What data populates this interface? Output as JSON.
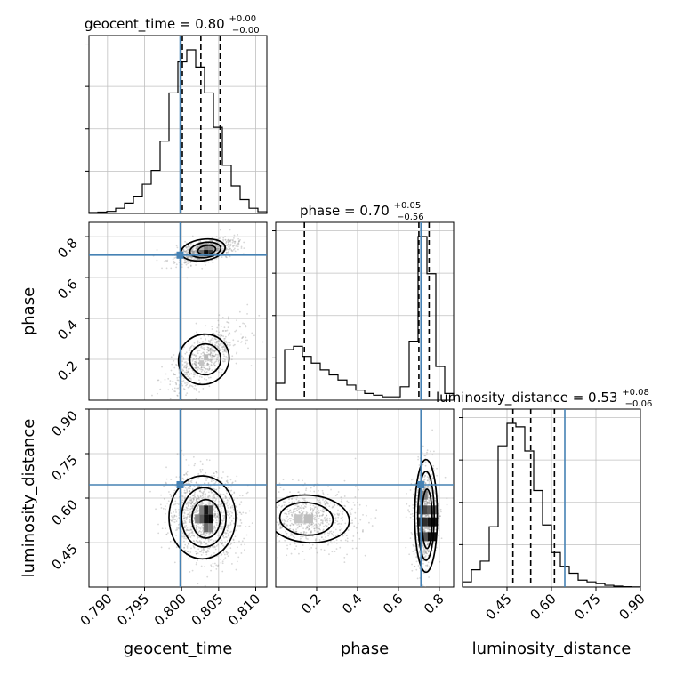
{
  "titles": {
    "geocent_time": {
      "main": "geocent_time = 0.80",
      "sup": "+0.00",
      "sub": "−0.00"
    },
    "phase": {
      "main": "phase = 0.70",
      "sup": "+0.05",
      "sub": "−0.56"
    },
    "luminosity_distance": {
      "main": "luminosity_distance = 0.53",
      "sup": "+0.08",
      "sub": "−0.06"
    }
  },
  "axis_labels": {
    "x": [
      "geocent_time",
      "phase",
      "luminosity_distance"
    ],
    "y": [
      "phase",
      "luminosity_distance"
    ]
  },
  "colors": {
    "truth": "#4682b4",
    "hist": "#000000",
    "grid": "#c0c0c0",
    "scatter": "#8c8c8c"
  },
  "chart_data": {
    "type": "corner",
    "parameters": [
      "geocent_time",
      "phase",
      "luminosity_distance"
    ],
    "ranges": {
      "geocent_time": [
        0.7875,
        0.8115
      ],
      "phase": [
        0.0,
        0.87
      ],
      "luminosity_distance": [
        0.3,
        0.9
      ]
    },
    "ticks": {
      "geocent_time": {
        "values": [
          0.79,
          0.795,
          0.8,
          0.805,
          0.81
        ],
        "labels": [
          "0.790",
          "0.795",
          "0.800",
          "0.805",
          "0.810"
        ]
      },
      "phase": {
        "values": [
          0.2,
          0.4,
          0.6,
          0.8
        ],
        "labels": [
          "0.2",
          "0.4",
          "0.6",
          "0.8"
        ]
      },
      "luminosity_distance": {
        "values": [
          0.45,
          0.6,
          0.75,
          0.9
        ],
        "labels": [
          "0.45",
          "0.60",
          "0.75",
          "0.90"
        ]
      }
    },
    "truths": {
      "geocent_time": 0.7998,
      "phase": 0.71,
      "luminosity_distance": 0.645
    },
    "quantiles": {
      "geocent_time": [
        0.8001,
        0.8026,
        0.8052
      ],
      "phase": [
        0.14,
        0.7,
        0.75
      ],
      "luminosity_distance": [
        0.47,
        0.53,
        0.61
      ]
    },
    "histograms": {
      "geocent_time": {
        "edges_start": 0.7875,
        "bin_width": 0.0012,
        "counts": [
          0.005,
          0.008,
          0.012,
          0.03,
          0.06,
          0.1,
          0.17,
          0.25,
          0.42,
          0.7,
          0.88,
          0.95,
          0.85,
          0.7,
          0.5,
          0.28,
          0.16,
          0.08,
          0.03,
          0.01
        ]
      },
      "phase": {
        "edges_start": 0.0,
        "bin_width": 0.0435,
        "counts": [
          0.1,
          0.3,
          0.32,
          0.26,
          0.22,
          0.18,
          0.15,
          0.12,
          0.09,
          0.06,
          0.04,
          0.03,
          0.02,
          0.02,
          0.08,
          0.35,
          0.97,
          0.75,
          0.2,
          0.04
        ]
      },
      "luminosity_distance": {
        "edges_start": 0.3,
        "bin_width": 0.03,
        "counts": [
          0.03,
          0.1,
          0.15,
          0.35,
          0.82,
          0.95,
          0.93,
          0.79,
          0.56,
          0.36,
          0.2,
          0.12,
          0.08,
          0.04,
          0.03,
          0.02,
          0.01,
          0.005,
          0.002,
          0.001
        ]
      }
    },
    "grid": true
  }
}
